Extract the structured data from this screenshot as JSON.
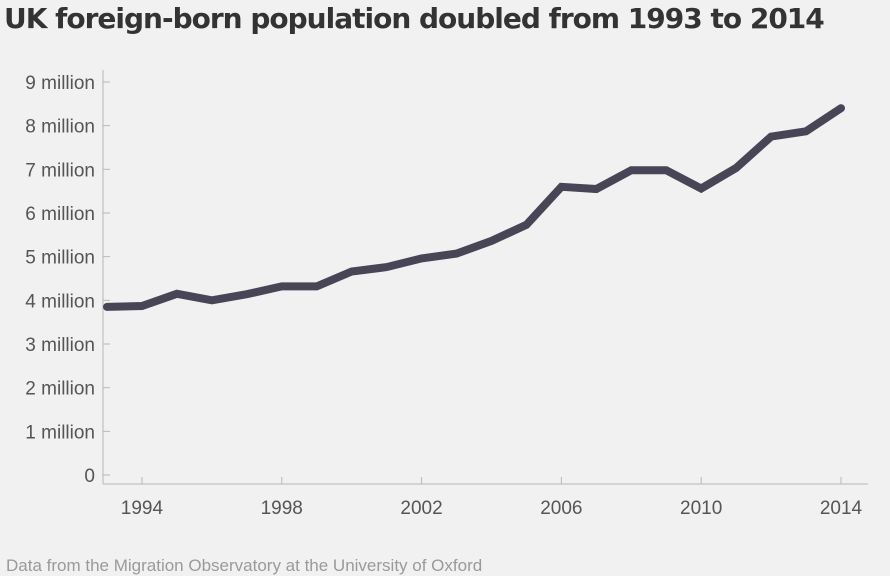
{
  "chart_data": {
    "type": "line",
    "title": "UK foreign-born population doubled from 1993 to 2014",
    "source": "Data from the Migration Observatory at the University of Oxford",
    "xlabel": "",
    "ylabel": "",
    "xlim": [
      1993,
      2014
    ],
    "ylim": [
      0,
      9
    ],
    "y_ticks": [
      {
        "value": 0,
        "label": "0"
      },
      {
        "value": 1,
        "label": "1 million"
      },
      {
        "value": 2,
        "label": "2 million"
      },
      {
        "value": 3,
        "label": "3 million"
      },
      {
        "value": 4,
        "label": "4 million"
      },
      {
        "value": 5,
        "label": "5 million"
      },
      {
        "value": 6,
        "label": "6 million"
      },
      {
        "value": 7,
        "label": "7 million"
      },
      {
        "value": 8,
        "label": "8 million"
      },
      {
        "value": 9,
        "label": "9 million"
      }
    ],
    "x_ticks": [
      {
        "value": 1994,
        "label": "1994"
      },
      {
        "value": 1998,
        "label": "1998"
      },
      {
        "value": 2002,
        "label": "2002"
      },
      {
        "value": 2006,
        "label": "2006"
      },
      {
        "value": 2010,
        "label": "2010"
      },
      {
        "value": 2014,
        "label": "2014"
      }
    ],
    "grid": false,
    "line_color": "#474556",
    "series": [
      {
        "x": [
          1993,
          1994,
          1995,
          1996,
          1997,
          1998,
          1999,
          2000,
          2001,
          2002,
          2003,
          2004,
          2005,
          2006,
          2007,
          2008,
          2009,
          2010,
          2011,
          2012,
          2013,
          2014
        ],
        "values": [
          3.85,
          3.87,
          4.15,
          4.0,
          4.14,
          4.32,
          4.32,
          4.66,
          4.76,
          4.96,
          5.07,
          5.36,
          5.73,
          6.6,
          6.55,
          6.98,
          6.98,
          6.56,
          7.03,
          7.75,
          7.87,
          8.4
        ]
      }
    ]
  }
}
